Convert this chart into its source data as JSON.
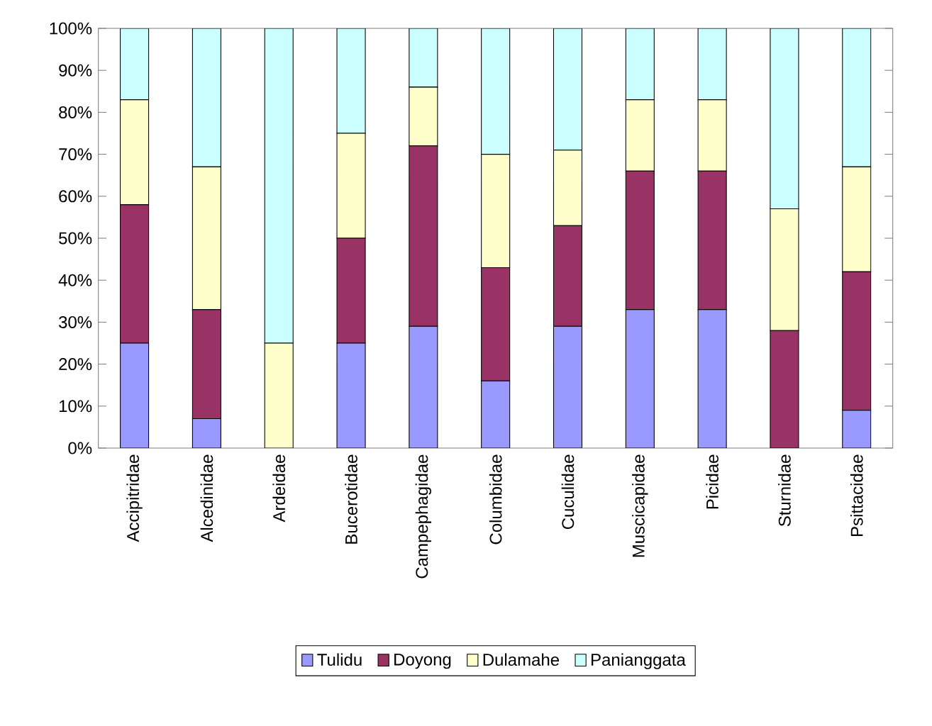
{
  "chart_data": {
    "type": "bar",
    "stacked": true,
    "categories": [
      "Accipitridae",
      "Alcedinidae",
      "Ardeidae",
      "Bucerotidae",
      "Campephagidae",
      "Columbidae",
      "Cuculidae",
      "Muscicapidae",
      "Picidae",
      "Sturnidae",
      "Psittacidae"
    ],
    "series": [
      {
        "name": "Tulidu",
        "color": "#9999ff",
        "values": [
          25,
          7,
          0,
          25,
          29,
          16,
          29,
          33,
          33,
          0,
          9
        ]
      },
      {
        "name": "Doyong",
        "color": "#993366",
        "values": [
          33,
          26,
          0,
          25,
          43,
          27,
          24,
          33,
          33,
          28,
          33
        ]
      },
      {
        "name": "Dulamahe",
        "color": "#ffffcc",
        "values": [
          25,
          34,
          25,
          25,
          14,
          27,
          18,
          17,
          17,
          29,
          25
        ]
      },
      {
        "name": "Panianggata",
        "color": "#ccffff",
        "values": [
          17,
          33,
          75,
          25,
          14,
          30,
          29,
          17,
          17,
          43,
          33
        ]
      }
    ],
    "ylim": [
      0,
      100
    ],
    "yticks": [
      {
        "value": 0,
        "label": "0%"
      },
      {
        "value": 10,
        "label": "10%"
      },
      {
        "value": 20,
        "label": "20%"
      },
      {
        "value": 30,
        "label": "30%"
      },
      {
        "value": 40,
        "label": "40%"
      },
      {
        "value": 50,
        "label": "50%"
      },
      {
        "value": 60,
        "label": "60%"
      },
      {
        "value": 70,
        "label": "70%"
      },
      {
        "value": 80,
        "label": "80%"
      },
      {
        "value": 90,
        "label": "90%"
      },
      {
        "value": 100,
        "label": "100%"
      }
    ],
    "grid": false,
    "legend": "bottom"
  }
}
